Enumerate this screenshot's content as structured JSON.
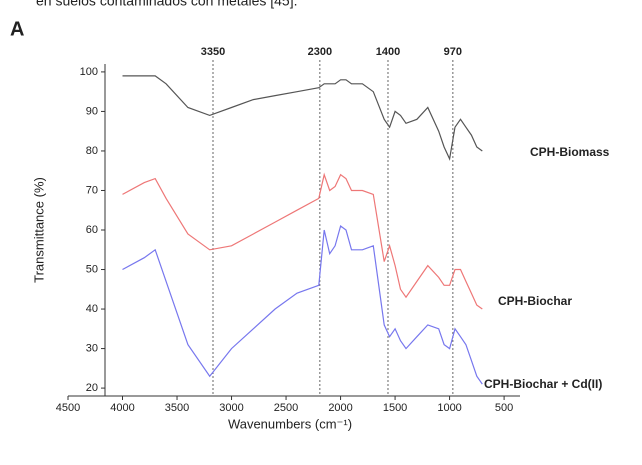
{
  "caption_above": "en suelos contaminados con metales [45].",
  "panel_label": "A",
  "chart_data": {
    "type": "line",
    "ylabel": "Transmittance (%)",
    "xlabel": "Wavenumbers (cm⁻¹)",
    "xlim": [
      4500,
      400
    ],
    "ylim": [
      18,
      102
    ],
    "xticks": [
      4500,
      4000,
      3500,
      3000,
      2500,
      2000,
      1500,
      1000,
      500
    ],
    "yticks": [
      20,
      30,
      40,
      50,
      60,
      70,
      80,
      90,
      100
    ],
    "annotations": [
      {
        "label": "3350",
        "x": 3170
      },
      {
        "label": "2300",
        "x": 2190
      },
      {
        "label": "1400",
        "x": 1565
      },
      {
        "label": "970",
        "x": 970
      }
    ],
    "x": [
      4000,
      3800,
      3700,
      3600,
      3400,
      3200,
      3000,
      2800,
      2600,
      2400,
      2200,
      2150,
      2100,
      2050,
      2000,
      1950,
      1900,
      1800,
      1700,
      1600,
      1550,
      1500,
      1450,
      1400,
      1300,
      1200,
      1100,
      1050,
      1000,
      950,
      900,
      850,
      800,
      750,
      700
    ],
    "series": [
      {
        "name": "CPH-Biomass",
        "color": "#555555",
        "values": [
          99,
          99,
          99,
          97,
          91,
          89,
          91,
          93,
          94,
          95,
          96,
          97,
          97,
          97,
          98,
          98,
          97,
          97,
          95,
          88,
          86,
          90,
          89,
          87,
          88,
          91,
          85,
          81,
          78,
          86,
          88,
          86,
          84,
          81,
          80
        ]
      },
      {
        "name": "CPH-Biochar",
        "color": "#ee7777",
        "values": [
          69,
          72,
          73,
          68,
          59,
          55,
          56,
          59,
          62,
          65,
          68,
          74,
          70,
          71,
          74,
          73,
          70,
          70,
          69,
          52,
          56,
          51,
          45,
          43,
          47,
          51,
          48,
          46,
          46,
          50,
          50,
          47,
          44,
          41,
          40
        ]
      },
      {
        "name": "CPH-Biochar + Cd(II)",
        "color": "#7777ee",
        "values": [
          50,
          53,
          55,
          47,
          31,
          23,
          30,
          35,
          40,
          44,
          46,
          60,
          54,
          56,
          61,
          60,
          55,
          55,
          56,
          36,
          33,
          35,
          32,
          30,
          33,
          36,
          35,
          31,
          30,
          35,
          33,
          31,
          27,
          23,
          21
        ]
      }
    ]
  }
}
